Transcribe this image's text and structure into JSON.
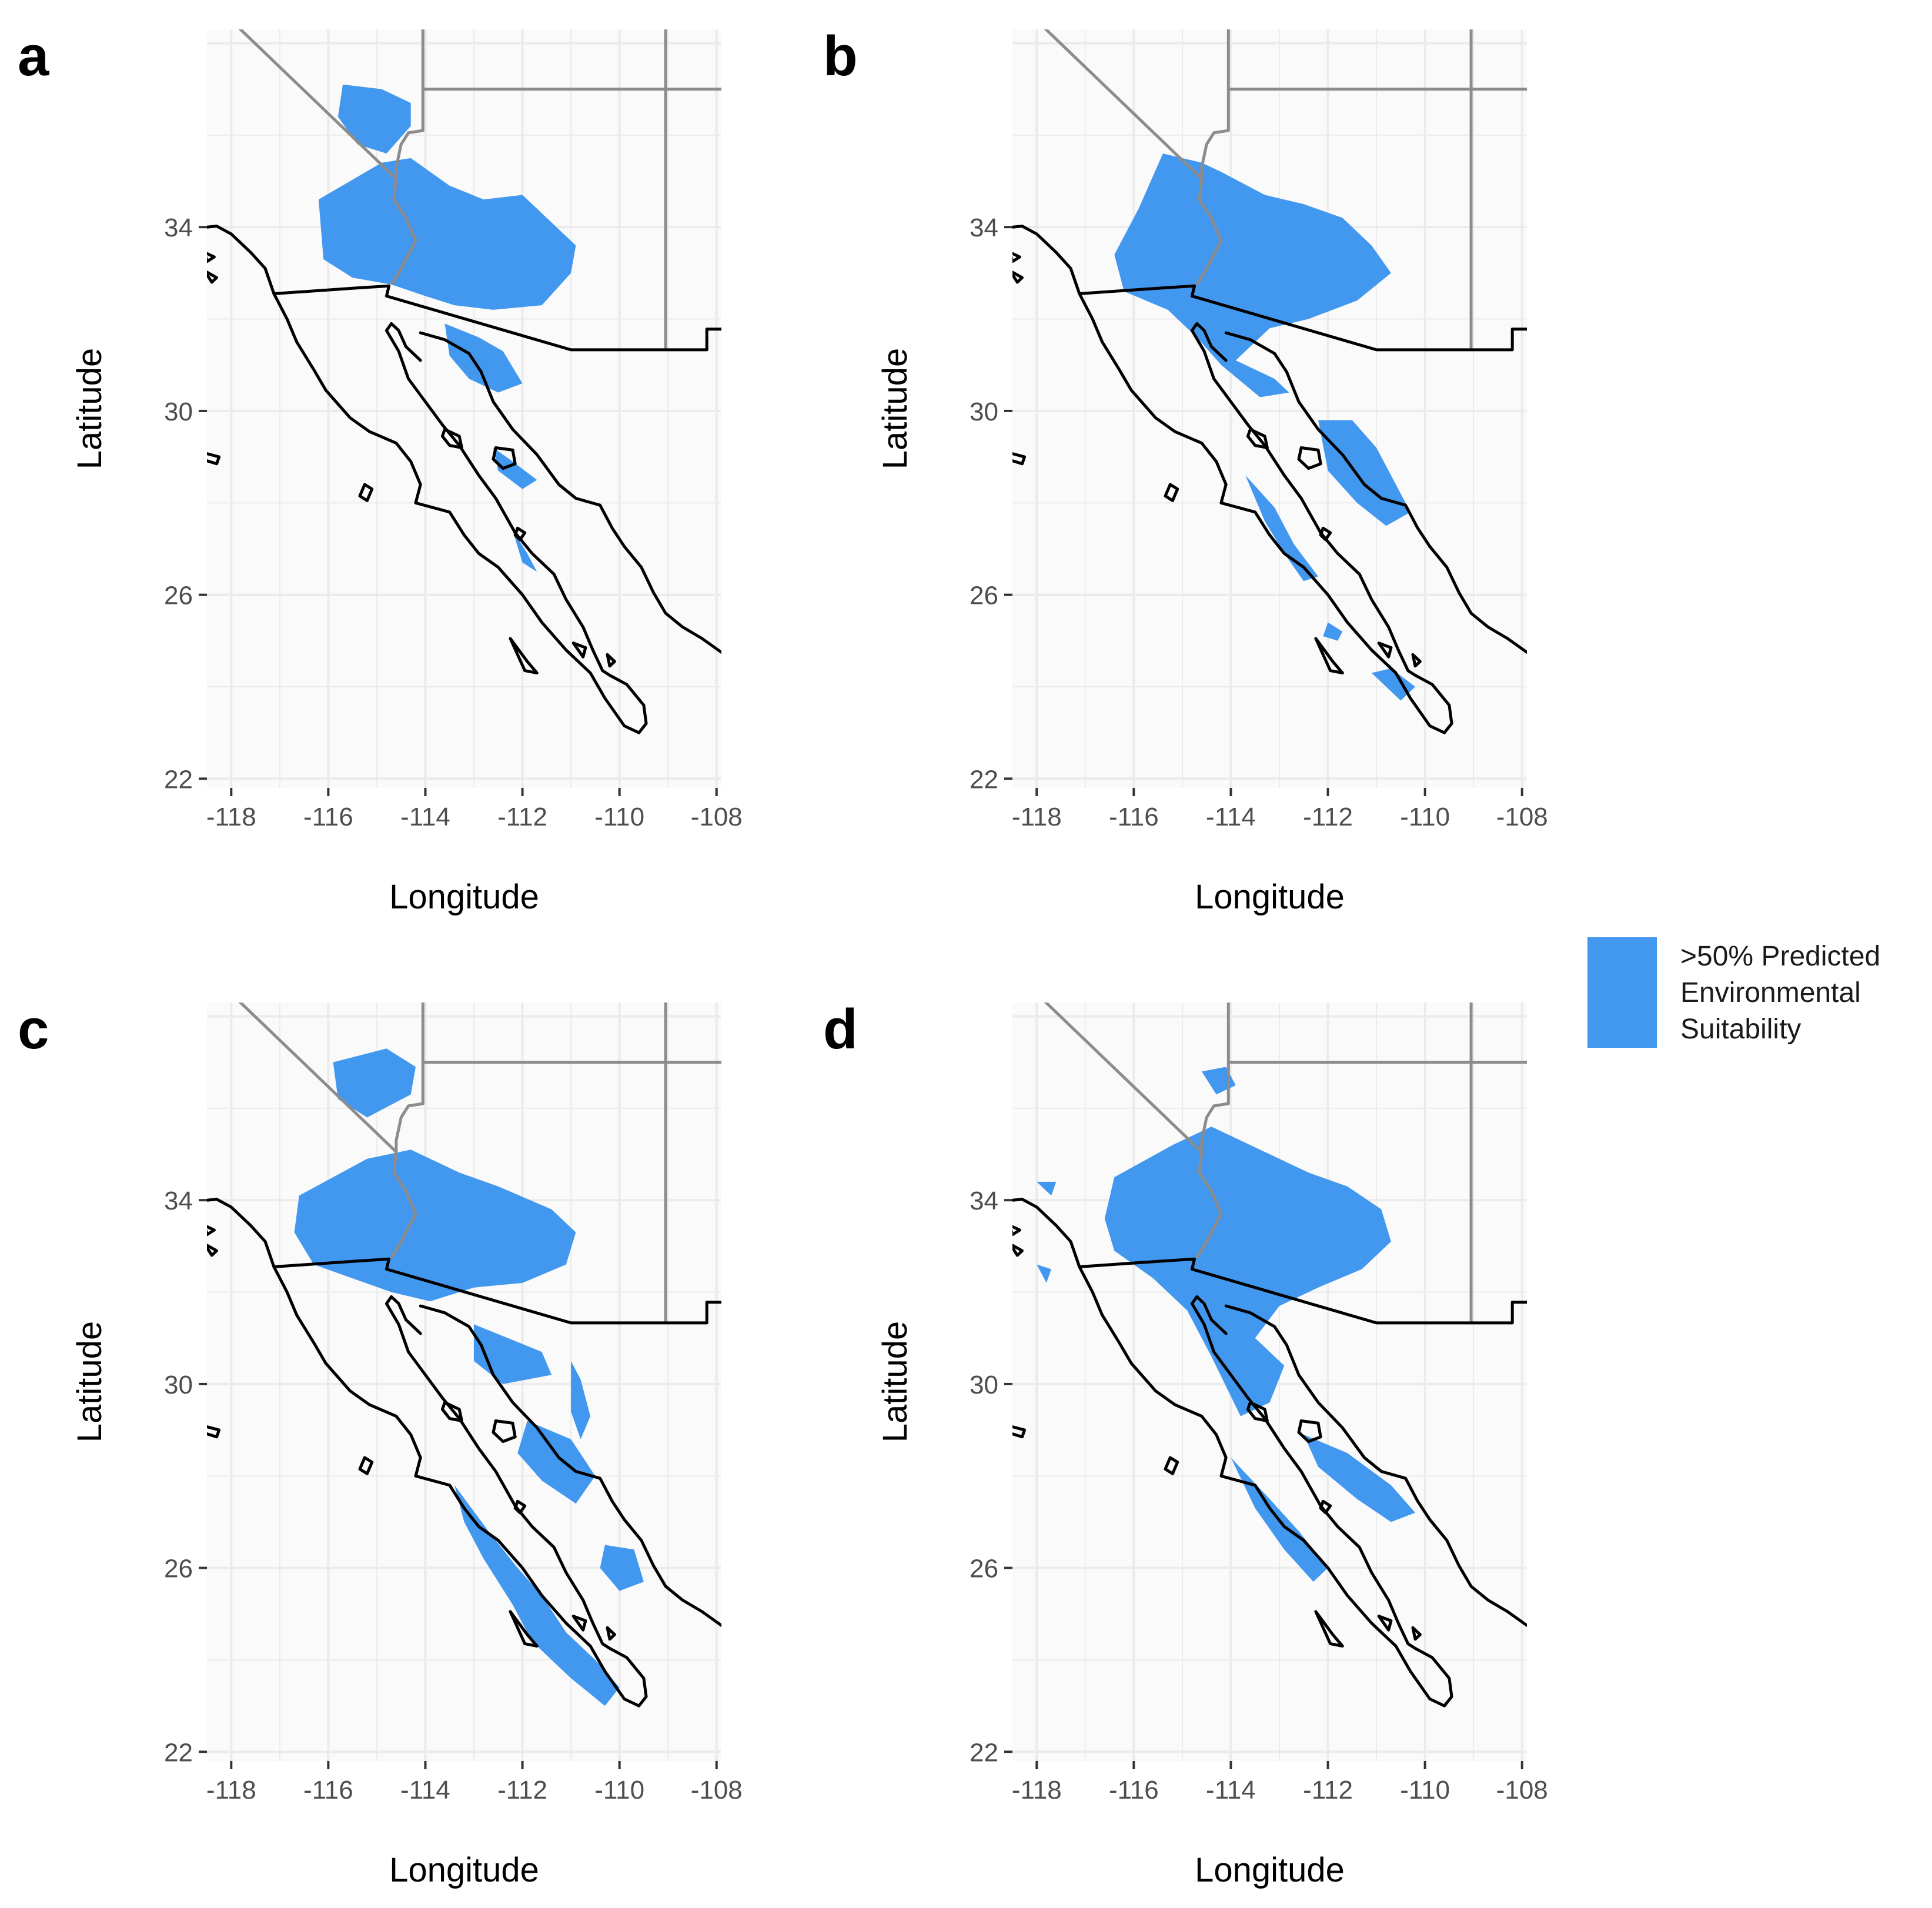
{
  "figure": {
    "panels": [
      {
        "letter": "a",
        "x_label": "Longitude",
        "y_label": "Latitude",
        "x_ticks": [
          "-118",
          "-116",
          "-114",
          "-112",
          "-110",
          "-108"
        ],
        "y_ticks": [
          "22",
          "26",
          "30",
          "34"
        ]
      },
      {
        "letter": "b",
        "x_label": "Longitude",
        "y_label": "Latitude",
        "x_ticks": [
          "-118",
          "-116",
          "-114",
          "-112",
          "-110",
          "-108"
        ],
        "y_ticks": [
          "22",
          "26",
          "30",
          "34"
        ]
      },
      {
        "letter": "c",
        "x_label": "Longitude",
        "y_label": "Latitude",
        "x_ticks": [
          "-118",
          "-116",
          "-114",
          "-112",
          "-110",
          "-108"
        ],
        "y_ticks": [
          "22",
          "26",
          "30",
          "34"
        ]
      },
      {
        "letter": "d",
        "x_label": "Longitude",
        "y_label": "Latitude",
        "x_ticks": [
          "-118",
          "-116",
          "-114",
          "-112",
          "-110",
          "-108"
        ],
        "y_ticks": [
          "22",
          "26",
          "30",
          "34"
        ]
      }
    ],
    "legend": {
      "line1": ">50% Predicted",
      "line2": "Environmental",
      "line3": "Suitability",
      "color": "#4297ef"
    },
    "colors": {
      "suitability": "#4297ef",
      "panel_background": "#fafafa",
      "grid": "#ebebeb",
      "coast": "#000000",
      "state_border": "#8c8c8c"
    }
  }
}
